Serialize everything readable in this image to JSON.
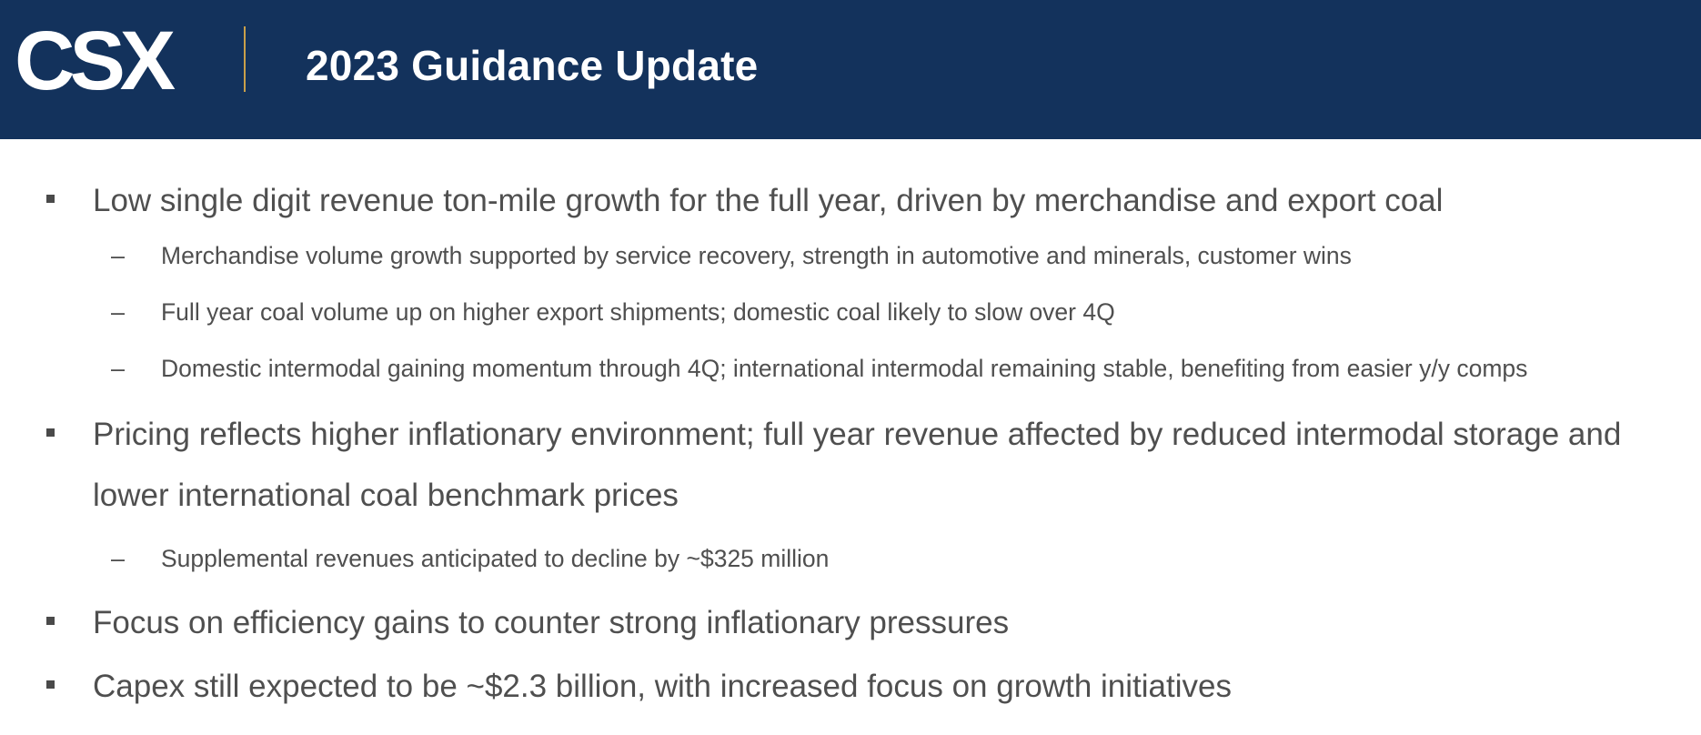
{
  "header": {
    "logo_text": "CSX",
    "title": "2023 Guidance Update",
    "colors": {
      "background": "#13325c",
      "divider": "#c9a04a",
      "title": "#ffffff"
    }
  },
  "bullets": [
    {
      "marker": "square-bullet",
      "text": "Low single digit revenue ton-mile growth for the full year, driven by merchandise and export coal",
      "sub_items": [
        "Merchandise volume growth supported by service recovery, strength in automotive and minerals, customer wins",
        "Full year coal volume up on higher export shipments; domestic coal likely to slow over 4Q",
        "Domestic intermodal gaining momentum through 4Q; international intermodal remaining stable, benefiting from easier y/y comps"
      ]
    },
    {
      "marker": "square-bullet",
      "text": "Pricing reflects higher inflationary environment; full year revenue affected by reduced intermodal storage and lower international coal benchmark prices",
      "sub_items": [
        "Supplemental revenues anticipated to decline by ~$325 million"
      ]
    },
    {
      "marker": "square-bullet",
      "text": "Focus on efficiency gains to counter strong inflationary pressures",
      "sub_items": []
    },
    {
      "marker": "square-bullet",
      "text": "Capex still expected to be ~$2.3 billion, with increased focus on growth initiatives",
      "sub_items": []
    }
  ],
  "sub_marker": "–",
  "colors": {
    "text": "#4f4f4f",
    "bullet": "#4a4a4a"
  }
}
